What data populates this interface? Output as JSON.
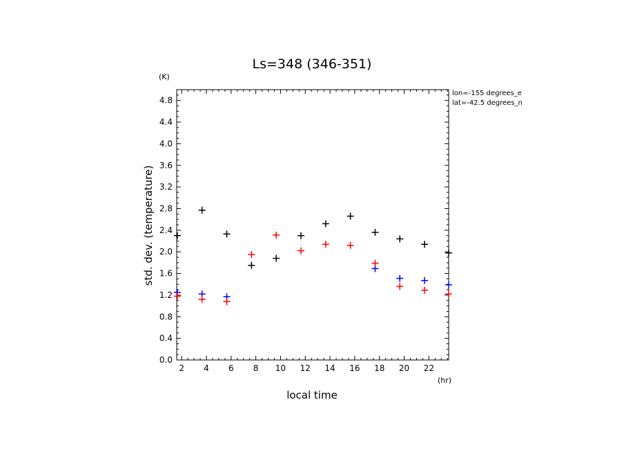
{
  "chart_data": {
    "type": "scatter",
    "title": "Ls=348 (346-351)",
    "xlabel": "local time",
    "ylabel": "std. dev. (temperature)",
    "x_unit": "(hr)",
    "y_unit": "(K)",
    "xlim": [
      1.6,
      23.6
    ],
    "ylim": [
      0,
      5.0
    ],
    "x_ticks": [
      2,
      4,
      6,
      8,
      10,
      12,
      14,
      16,
      18,
      20,
      22
    ],
    "y_ticks": [
      0.0,
      0.4,
      0.8,
      1.2,
      1.6,
      2.0,
      2.4,
      2.8,
      3.2,
      3.6,
      4.0,
      4.4,
      4.8
    ],
    "y_tick_labels": [
      "0.0",
      "0.4",
      "0.8",
      "1.2",
      "1.6",
      "2.0",
      "2.4",
      "2.8",
      "3.2",
      "3.6",
      "4.0",
      "4.4",
      "4.8"
    ],
    "annotations": [
      "lon=-155 degrees_e",
      "lat=-42.5 degrees_n"
    ],
    "grid": false,
    "series": [
      {
        "color": "#000000",
        "x": [
          1.65,
          3.65,
          5.65,
          7.65,
          9.65,
          11.65,
          13.65,
          15.65,
          17.65,
          19.65,
          21.65,
          23.6
        ],
        "y": [
          2.3,
          2.77,
          2.33,
          1.75,
          1.88,
          2.3,
          2.52,
          2.66,
          2.36,
          2.24,
          2.14,
          1.98
        ]
      },
      {
        "color": "#0000ff",
        "x": [
          1.65,
          3.65,
          5.65,
          17.65,
          19.65,
          21.65,
          23.6
        ],
        "y": [
          1.25,
          1.22,
          1.17,
          1.69,
          1.51,
          1.47,
          1.39
        ]
      },
      {
        "color": "#ff0000",
        "x": [
          1.65,
          3.65,
          5.65,
          7.65,
          9.65,
          11.65,
          13.65,
          15.65,
          17.65,
          19.65,
          21.65,
          23.6
        ],
        "y": [
          1.18,
          1.12,
          1.08,
          1.95,
          2.31,
          2.02,
          2.14,
          2.12,
          1.79,
          1.36,
          1.29,
          1.22
        ]
      }
    ]
  }
}
